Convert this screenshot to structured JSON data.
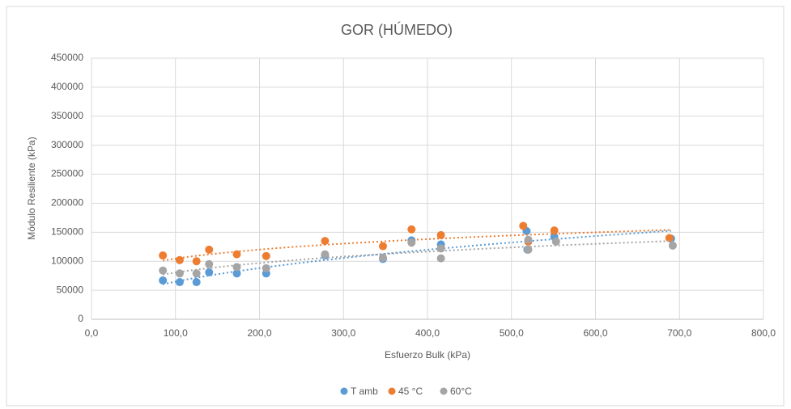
{
  "chart_data": {
    "type": "scatter",
    "title": "GOR (HÚMEDO)",
    "x_label": "Esfuerzo Bulk (kPa)",
    "y_label": "Módulo Resiliente (kPa)",
    "xlim": [
      0,
      800
    ],
    "ylim": [
      0,
      450000
    ],
    "xticks": [
      {
        "value": 0,
        "label": "0,0"
      },
      {
        "value": 100,
        "label": "100,0"
      },
      {
        "value": 200,
        "label": "200,0"
      },
      {
        "value": 300,
        "label": "300,0"
      },
      {
        "value": 400,
        "label": "400,0"
      },
      {
        "value": 500,
        "label": "500,0"
      },
      {
        "value": 600,
        "label": "600,0"
      },
      {
        "value": 700,
        "label": "700,0"
      },
      {
        "value": 800,
        "label": "800,0"
      }
    ],
    "yticks": [
      0,
      50000,
      100000,
      150000,
      200000,
      250000,
      300000,
      350000,
      400000,
      450000
    ],
    "grid": true,
    "legend": "bottom",
    "trendline": "power",
    "series": [
      {
        "name": "T amb",
        "color": "#5b9bd5",
        "x": [
          85,
          105,
          125,
          140,
          173,
          208,
          278,
          347,
          381,
          416,
          518,
          519,
          551,
          690
        ],
        "values": [
          67000,
          64000,
          64000,
          81000,
          79000,
          79000,
          110000,
          104000,
          136000,
          129000,
          152000,
          120000,
          142000,
          139000
        ]
      },
      {
        "name": "45 °C",
        "color": "#ed7d31",
        "x": [
          85,
          105,
          125,
          140,
          173,
          208,
          278,
          347,
          381,
          416,
          514,
          520,
          551,
          688
        ],
        "values": [
          110000,
          102000,
          100000,
          120000,
          112000,
          109000,
          135000,
          126000,
          155000,
          145000,
          161000,
          134000,
          153000,
          140000
        ]
      },
      {
        "name": "60°C",
        "color": "#a5a5a5",
        "x": [
          85,
          105,
          125,
          140,
          173,
          208,
          278,
          347,
          381,
          416,
          416,
          520,
          520,
          553,
          692
        ],
        "values": [
          84000,
          79000,
          79000,
          95000,
          90000,
          88000,
          112000,
          106000,
          132000,
          105000,
          122000,
          120000,
          137000,
          134000,
          127000
        ]
      }
    ]
  }
}
